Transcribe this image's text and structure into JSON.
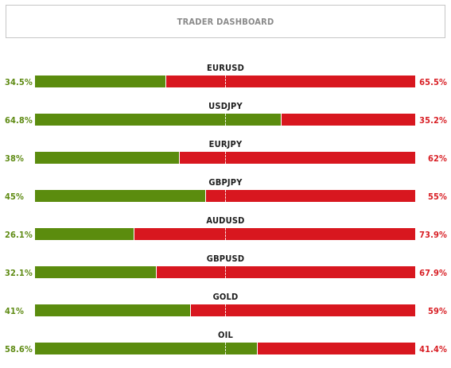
{
  "header": {
    "title": "TRADER DASHBOARD"
  },
  "colors": {
    "buy": "#5b8c0e",
    "sell": "#d8171f",
    "buy_text": "#5f8b14",
    "sell_text": "#d81e24"
  },
  "pairs": [
    {
      "name": "EURUSD",
      "buy_label": "34.5%",
      "sell_label": "65.5%",
      "buy": 34.5
    },
    {
      "name": "USDJPY",
      "buy_label": "64.8%",
      "sell_label": "35.2%",
      "buy": 64.8
    },
    {
      "name": "EURJPY",
      "buy_label": "38%",
      "sell_label": "62%",
      "buy": 38
    },
    {
      "name": "GBPJPY",
      "buy_label": "45%",
      "sell_label": "55%",
      "buy": 45
    },
    {
      "name": "AUDUSD",
      "buy_label": "26.1%",
      "sell_label": "73.9%",
      "buy": 26.1
    },
    {
      "name": "GBPUSD",
      "buy_label": "32.1%",
      "sell_label": "67.9%",
      "buy": 32.1
    },
    {
      "name": "GOLD",
      "buy_label": "41%",
      "sell_label": "59%",
      "buy": 41
    },
    {
      "name": "OIL",
      "buy_label": "58.6%",
      "sell_label": "41.4%",
      "buy": 58.6
    }
  ]
}
